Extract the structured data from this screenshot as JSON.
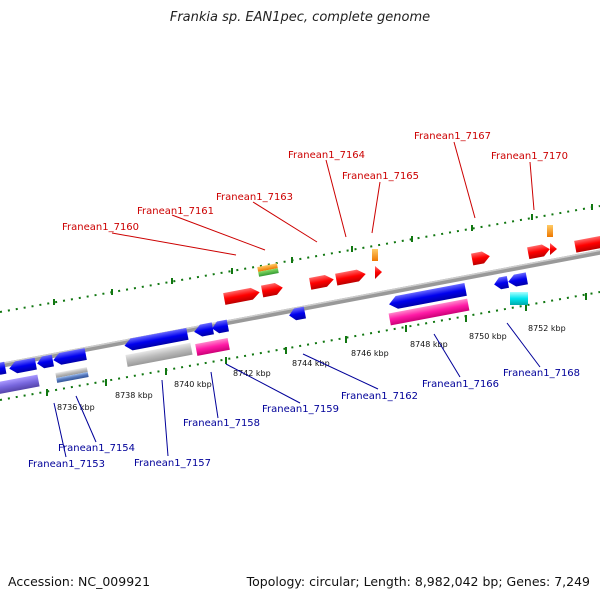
{
  "title": "Frankia sp. EAN1pec, complete genome",
  "footer": {
    "accession": "Accession: NC_009921",
    "topology": "Topology: circular; Length: 8,982,042 bp; Genes: 7,249"
  },
  "tick_labels": [
    "8736 kbp",
    "8738 kbp",
    "8740 kbp",
    "8742 kbp",
    "8744 kbp",
    "8746 kbp",
    "8748 kbp",
    "8750 kbp",
    "8752 kbp"
  ],
  "top_genes": [
    "Franean1_7160",
    "Franean1_7161",
    "Franean1_7163",
    "Franean1_7164",
    "Franean1_7165",
    "Franean1_7167",
    "Franean1_7170"
  ],
  "bottom_genes": [
    "Franean1_7153",
    "Franean1_7154",
    "Franean1_7157",
    "Franean1_7158",
    "Franean1_7159",
    "Franean1_7162",
    "Franean1_7166",
    "Franean1_7168"
  ],
  "colors": {
    "forward": "#ff0000",
    "reverse": "#0000ee",
    "pink": "#ff1aa6",
    "gray": "#bbbbbb",
    "orange": "#ff8800",
    "green": "#33aa33",
    "cyan": "#00e5ee",
    "violet": "#7766dd",
    "steel": "#5577bb",
    "backbone": "#888888",
    "ticks": "#117711"
  }
}
